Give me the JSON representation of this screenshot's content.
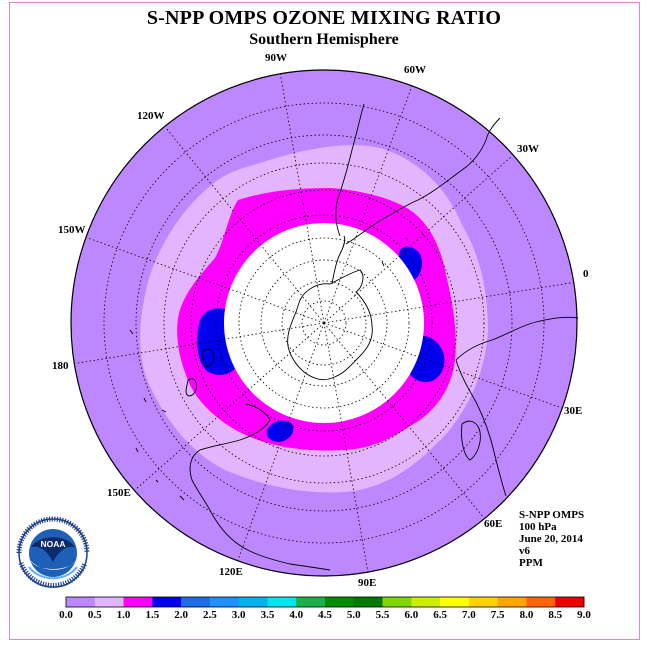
{
  "title": "S-NPP OMPS OZONE MIXING RATIO",
  "subtitle": "Southern Hemisphere",
  "longitude_labels": {
    "lon_90w": "90W",
    "lon_60w": "60W",
    "lon_30w": "30W",
    "lon_0": "0",
    "lon_30e": "30E",
    "lon_60e": "60E",
    "lon_90e": "90E",
    "lon_120e": "120E",
    "lon_150e": "150E",
    "lon_180": "180",
    "lon_150w": "150W",
    "lon_120w": "120W"
  },
  "info": {
    "instrument": "S-NPP OMPS",
    "level": "100 hPa",
    "date": "June 20, 2014",
    "version": "v6",
    "units": "PPM"
  },
  "logo": {
    "text": "NOAA",
    "ring_text": "NATIONAL OCEANIC AND ATMOSPHERIC ADMINISTRATION · U.S. DEPARTMENT OF COMMERCE"
  },
  "colorbar": {
    "ticks": [
      "0.0",
      "0.5",
      "1.0",
      "1.5",
      "2.0",
      "2.5",
      "3.0",
      "3.5",
      "4.0",
      "4.5",
      "5.0",
      "5.5",
      "6.0",
      "6.5",
      "7.0",
      "7.5",
      "8.0",
      "8.5",
      "9.0"
    ],
    "colors": [
      "#bd87ff",
      "#e3b5ff",
      "#ff00ff",
      "#0000ee",
      "#1c6ee6",
      "#1e90ff",
      "#00b2ee",
      "#00e5ee",
      "#1cb04a",
      "#008b00",
      "#007a00",
      "#7fd600",
      "#cdee00",
      "#ffff00",
      "#ffd200",
      "#ffa500",
      "#ff6600",
      "#ee0000",
      "#8b5a2b"
    ]
  },
  "colors": {
    "background_field": "#bd87ff",
    "band_0p5_1p0": "#e3b5ff",
    "band_1p0_1p5": "#ff00ff",
    "band_1p5_2p0": "#0000ee",
    "polar_night_mask": "#ffffff",
    "frame": "#d58ad5"
  }
}
